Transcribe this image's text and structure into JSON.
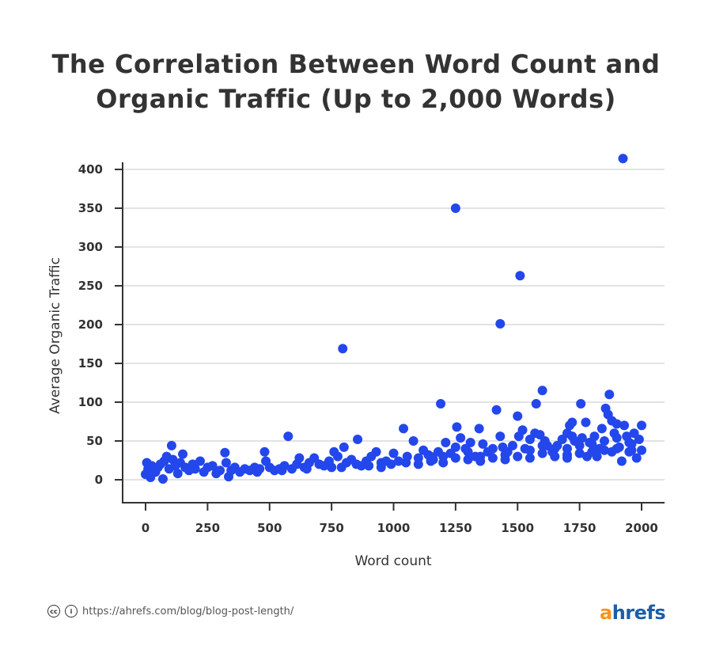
{
  "title_lines": [
    "The Correlation Between Word Count and",
    "Organic Traffic (Up to 2,000 Words)"
  ],
  "footer": {
    "url": "https://ahrefs.com/blog/blog-post-length/",
    "icons": [
      "creative-commons-icon",
      "attribution-icon"
    ]
  },
  "logo": {
    "first": "a",
    "rest": "hrefs",
    "colors": {
      "a": "#f7931e",
      "rest": "#1b5fa8"
    }
  },
  "chart_data": {
    "type": "scatter",
    "title": "The Correlation Between Word Count and Organic Traffic (Up to 2,000 Words)",
    "xlabel": "Word count",
    "ylabel": "Average Organic Traffic",
    "xlim": [
      -90,
      2100
    ],
    "ylim": [
      -30,
      400
    ],
    "xticks": [
      0,
      250,
      500,
      750,
      1000,
      1250,
      1500,
      1750,
      2000
    ],
    "yticks": [
      0,
      50,
      100,
      150,
      200,
      250,
      300,
      350,
      400
    ],
    "grid": "horizontal",
    "color": "#2347eb",
    "points": [
      [
        0,
        7
      ],
      [
        5,
        22
      ],
      [
        10,
        14
      ],
      [
        20,
        3
      ],
      [
        25,
        18
      ],
      [
        30,
        12
      ],
      [
        40,
        10
      ],
      [
        50,
        16
      ],
      [
        60,
        20
      ],
      [
        70,
        1
      ],
      [
        75,
        24
      ],
      [
        85,
        30
      ],
      [
        95,
        14
      ],
      [
        105,
        44
      ],
      [
        110,
        26
      ],
      [
        120,
        18
      ],
      [
        130,
        8
      ],
      [
        140,
        22
      ],
      [
        150,
        33
      ],
      [
        160,
        16
      ],
      [
        175,
        12
      ],
      [
        190,
        20
      ],
      [
        200,
        14
      ],
      [
        220,
        24
      ],
      [
        235,
        10
      ],
      [
        250,
        16
      ],
      [
        270,
        18
      ],
      [
        285,
        8
      ],
      [
        300,
        12
      ],
      [
        320,
        35
      ],
      [
        325,
        22
      ],
      [
        335,
        4
      ],
      [
        345,
        12
      ],
      [
        360,
        16
      ],
      [
        380,
        10
      ],
      [
        400,
        14
      ],
      [
        420,
        12
      ],
      [
        440,
        16
      ],
      [
        450,
        10
      ],
      [
        460,
        14
      ],
      [
        480,
        36
      ],
      [
        485,
        24
      ],
      [
        500,
        16
      ],
      [
        520,
        12
      ],
      [
        540,
        14
      ],
      [
        550,
        12
      ],
      [
        560,
        18
      ],
      [
        575,
        56
      ],
      [
        590,
        14
      ],
      [
        610,
        20
      ],
      [
        620,
        28
      ],
      [
        640,
        16
      ],
      [
        650,
        14
      ],
      [
        660,
        22
      ],
      [
        680,
        28
      ],
      [
        700,
        20
      ],
      [
        720,
        18
      ],
      [
        740,
        24
      ],
      [
        750,
        16
      ],
      [
        760,
        36
      ],
      [
        775,
        30
      ],
      [
        790,
        16
      ],
      [
        800,
        42
      ],
      [
        810,
        22
      ],
      [
        830,
        26
      ],
      [
        850,
        20
      ],
      [
        855,
        52
      ],
      [
        870,
        18
      ],
      [
        890,
        24
      ],
      [
        900,
        18
      ],
      [
        910,
        30
      ],
      [
        930,
        36
      ],
      [
        950,
        22
      ],
      [
        950,
        16
      ],
      [
        970,
        24
      ],
      [
        990,
        20
      ],
      [
        1000,
        34
      ],
      [
        1020,
        24
      ],
      [
        1040,
        66
      ],
      [
        1050,
        22
      ],
      [
        1055,
        30
      ],
      [
        1080,
        50
      ],
      [
        1100,
        28
      ],
      [
        1100,
        20
      ],
      [
        1120,
        38
      ],
      [
        1140,
        32
      ],
      [
        1150,
        24
      ],
      [
        1150,
        30
      ],
      [
        1160,
        26
      ],
      [
        1180,
        36
      ],
      [
        1190,
        98
      ],
      [
        1200,
        30
      ],
      [
        1200,
        22
      ],
      [
        1210,
        48
      ],
      [
        1230,
        34
      ],
      [
        1250,
        42
      ],
      [
        1250,
        28
      ],
      [
        1255,
        68
      ],
      [
        1270,
        54
      ],
      [
        1290,
        40
      ],
      [
        1300,
        26
      ],
      [
        1300,
        36
      ],
      [
        1310,
        48
      ],
      [
        1330,
        30
      ],
      [
        1345,
        66
      ],
      [
        1350,
        30
      ],
      [
        1350,
        24
      ],
      [
        1360,
        46
      ],
      [
        1380,
        36
      ],
      [
        1400,
        40
      ],
      [
        1400,
        28
      ],
      [
        1415,
        90
      ],
      [
        1430,
        56
      ],
      [
        1440,
        42
      ],
      [
        1450,
        32
      ],
      [
        1450,
        26
      ],
      [
        1460,
        36
      ],
      [
        1480,
        44
      ],
      [
        1500,
        82
      ],
      [
        1500,
        30
      ],
      [
        1505,
        56
      ],
      [
        1520,
        64
      ],
      [
        1530,
        40
      ],
      [
        1550,
        52
      ],
      [
        1550,
        28
      ],
      [
        1550,
        38
      ],
      [
        1570,
        60
      ],
      [
        1575,
        98
      ],
      [
        1590,
        58
      ],
      [
        1600,
        115
      ],
      [
        1600,
        34
      ],
      [
        1600,
        44
      ],
      [
        1610,
        50
      ],
      [
        1620,
        44
      ],
      [
        1640,
        36
      ],
      [
        1650,
        30
      ],
      [
        1650,
        40
      ],
      [
        1660,
        44
      ],
      [
        1680,
        52
      ],
      [
        1700,
        60
      ],
      [
        1700,
        32
      ],
      [
        1700,
        28
      ],
      [
        1700,
        40
      ],
      [
        1710,
        70
      ],
      [
        1720,
        74
      ],
      [
        1720,
        56
      ],
      [
        1730,
        50
      ],
      [
        1750,
        34
      ],
      [
        1750,
        44
      ],
      [
        1755,
        98
      ],
      [
        1760,
        54
      ],
      [
        1775,
        74
      ],
      [
        1780,
        30
      ],
      [
        1790,
        48
      ],
      [
        1800,
        36
      ],
      [
        1800,
        46
      ],
      [
        1810,
        56
      ],
      [
        1820,
        30
      ],
      [
        1830,
        40
      ],
      [
        1840,
        66
      ],
      [
        1850,
        38
      ],
      [
        1850,
        50
      ],
      [
        1855,
        92
      ],
      [
        1865,
        84
      ],
      [
        1870,
        110
      ],
      [
        1880,
        76
      ],
      [
        1880,
        36
      ],
      [
        1890,
        60
      ],
      [
        1900,
        72
      ],
      [
        1900,
        40
      ],
      [
        1900,
        54
      ],
      [
        1910,
        42
      ],
      [
        1920,
        24
      ],
      [
        1930,
        70
      ],
      [
        1940,
        56
      ],
      [
        1950,
        48
      ],
      [
        1950,
        36
      ],
      [
        1960,
        38
      ],
      [
        1960,
        46
      ],
      [
        1970,
        60
      ],
      [
        1980,
        28
      ],
      [
        1990,
        52
      ],
      [
        2000,
        70
      ],
      [
        2000,
        38
      ],
      [
        1925,
        414
      ],
      [
        1250,
        350
      ],
      [
        1510,
        263
      ],
      [
        1430,
        201
      ],
      [
        795,
        169
      ]
    ]
  }
}
